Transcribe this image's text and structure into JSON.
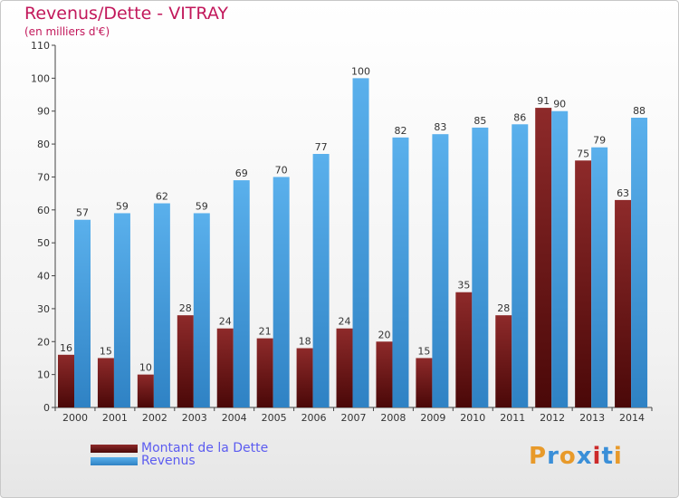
{
  "header": {
    "title": "Revenus/Dette - VITRAY",
    "subtitle": "(en milliers d'€)"
  },
  "legend": {
    "debt_label": "Montant de la Dette",
    "revenue_label": "Revenus"
  },
  "logo": {
    "text": "Proxiti",
    "colors": [
      "#e89a2a",
      "#3a8fd8",
      "#e89a2a",
      "#3a8fd8",
      "#cc2a2a",
      "#3a8fd8",
      "#e89a2a"
    ]
  },
  "colors": {
    "debt": "#7a1515",
    "revenue": "#4ba3e3"
  },
  "chart_data": {
    "type": "bar",
    "categories": [
      "2000",
      "2001",
      "2002",
      "2003",
      "2004",
      "2005",
      "2006",
      "2007",
      "2008",
      "2009",
      "2010",
      "2011",
      "2012",
      "2013",
      "2014"
    ],
    "series": [
      {
        "name": "Montant de la Dette",
        "values": [
          16,
          15,
          10,
          28,
          24,
          21,
          18,
          24,
          20,
          15,
          35,
          28,
          91,
          75,
          63
        ]
      },
      {
        "name": "Revenus",
        "values": [
          57,
          59,
          62,
          59,
          69,
          70,
          77,
          100,
          82,
          83,
          85,
          86,
          90,
          79,
          88
        ]
      }
    ],
    "title": "Revenus/Dette - VITRAY",
    "subtitle": "(en milliers d'€)",
    "xlabel": "",
    "ylabel": "",
    "ylim": [
      0,
      110
    ],
    "yticks": [
      0,
      10,
      20,
      30,
      40,
      50,
      60,
      70,
      80,
      90,
      100,
      110
    ],
    "grid": false,
    "legend_position": "bottom-left"
  }
}
